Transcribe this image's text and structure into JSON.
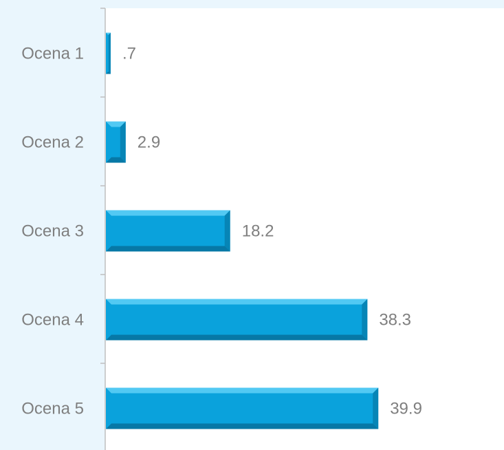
{
  "chart_data": {
    "type": "bar",
    "orientation": "horizontal",
    "title": "",
    "xlabel": "",
    "ylabel": "",
    "categories": [
      "Ocena 1",
      "Ocena 2",
      "Ocena 3",
      "Ocena 4",
      "Ocena 5"
    ],
    "values": [
      0.7,
      2.9,
      18.2,
      38.3,
      39.9
    ],
    "value_labels": [
      ".7",
      "2.9",
      "18.2",
      "38.3",
      "39.9"
    ],
    "xlim": [
      0,
      45
    ],
    "grid": false,
    "legend": "none",
    "colors": {
      "bar": "#0aa2dc",
      "bar_highlight": "#5fd0f7",
      "bar_shadow": "#066e98",
      "axis": "#bfbfbf",
      "text": "#7f7f7f"
    }
  }
}
